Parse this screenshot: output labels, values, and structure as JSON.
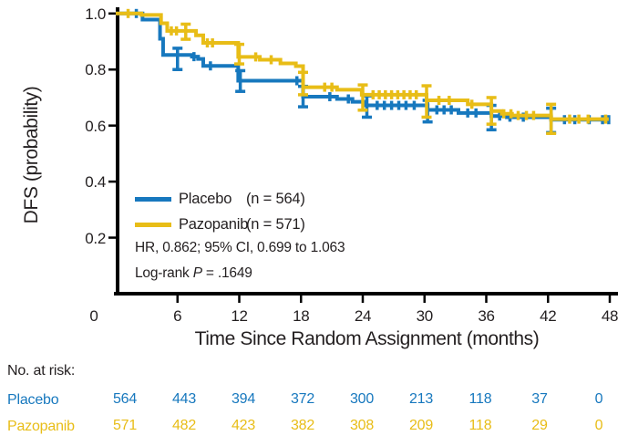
{
  "colors": {
    "placebo": "#1778BE",
    "pazopanib": "#E8BD17",
    "axis": "#000000",
    "text": "#231F20"
  },
  "y_axis": {
    "label": "DFS (probability)",
    "ticks": [
      "1.0",
      "0.8",
      "0.6",
      "0.4",
      "0.2"
    ],
    "tick_values": [
      1.0,
      0.8,
      0.6,
      0.4,
      0.2
    ]
  },
  "x_axis": {
    "label": "Time Since Random Assignment (months)",
    "ticks": [
      "0",
      "6",
      "12",
      "18",
      "24",
      "30",
      "36",
      "42",
      "48"
    ],
    "tick_values": [
      0,
      6,
      12,
      18,
      24,
      30,
      36,
      42,
      48
    ]
  },
  "legend": {
    "placebo_label": "Placebo",
    "placebo_n": "(n = 564)",
    "pazopanib_label": "Pazopanib",
    "pazopanib_n": "(n = 571)"
  },
  "stats": {
    "hr_line": "HR, 0.862; 95% CI, 0.699 to 1.063",
    "logrank_prefix": "Log-rank ",
    "logrank_p_symbol": "P",
    "logrank_value": " = .1649"
  },
  "risk_table": {
    "header": "No. at risk:",
    "rows": [
      {
        "label": "Placebo",
        "color": "#1778BE",
        "values": [
          "564",
          "443",
          "394",
          "372",
          "300",
          "213",
          "118",
          "37",
          "0"
        ]
      },
      {
        "label": "Pazopanib",
        "color": "#E8BD17",
        "values": [
          "571",
          "482",
          "423",
          "382",
          "308",
          "209",
          "118",
          "29",
          "0"
        ]
      }
    ]
  },
  "chart_data": {
    "type": "line",
    "subtype": "kaplan-meier",
    "title": "",
    "xlabel": "Time Since Random Assignment (months)",
    "ylabel": "DFS (probability)",
    "xlim": [
      0,
      48
    ],
    "ylim": [
      0,
      1.0
    ],
    "x_ticks": [
      0,
      6,
      12,
      18,
      24,
      30,
      36,
      42,
      48
    ],
    "y_ticks": [
      0.2,
      0.4,
      0.6,
      0.8,
      1.0
    ],
    "grid": false,
    "legend_position": "inside-lower-left",
    "annotations": [
      "HR, 0.862; 95% CI, 0.699 to 1.063",
      "Log-rank P = .1649"
    ],
    "series": [
      {
        "name": "Placebo",
        "n": 564,
        "color": "#1778BE",
        "steps": [
          [
            0,
            1.0
          ],
          [
            2.6,
            0.978
          ],
          [
            4.3,
            0.91
          ],
          [
            4.6,
            0.852
          ],
          [
            7.4,
            0.846
          ],
          [
            8.0,
            0.838
          ],
          [
            8.5,
            0.813
          ],
          [
            11.9,
            0.76
          ],
          [
            18.2,
            0.703
          ],
          [
            21.5,
            0.695
          ],
          [
            23.0,
            0.685
          ],
          [
            24.2,
            0.672
          ],
          [
            30.3,
            0.656
          ],
          [
            33.3,
            0.645
          ],
          [
            36.5,
            0.634
          ],
          [
            38.0,
            0.63
          ],
          [
            42.3,
            0.621
          ],
          [
            47.9,
            0.621
          ]
        ],
        "error_bars": [
          [
            6.0,
            0.8,
            0.876
          ],
          [
            12.1,
            0.722,
            0.796
          ],
          [
            18.2,
            0.667,
            0.74
          ],
          [
            24.4,
            0.63,
            0.706
          ],
          [
            30.3,
            0.613,
            0.69
          ],
          [
            36.5,
            0.585,
            0.672
          ],
          [
            42.3,
            0.575,
            0.662
          ]
        ],
        "censor_months": [
          2.0,
          7.6,
          9.2,
          17.6,
          20.8,
          22.6,
          25.4,
          26.1,
          26.8,
          27.5,
          28.2,
          29.0,
          31.2,
          31.9,
          32.6,
          34.2,
          35.0,
          37.3,
          38.3,
          39.6,
          43.6,
          44.6,
          46.0,
          47.3,
          47.9
        ],
        "at_risk": [
          564,
          443,
          394,
          372,
          300,
          213,
          118,
          37,
          0
        ]
      },
      {
        "name": "Pazopanib",
        "n": 571,
        "color": "#E8BD17",
        "steps": [
          [
            0,
            1.0
          ],
          [
            2.5,
            0.995
          ],
          [
            4.4,
            0.965
          ],
          [
            5.0,
            0.938
          ],
          [
            7.8,
            0.922
          ],
          [
            8.5,
            0.895
          ],
          [
            11.9,
            0.845
          ],
          [
            14.0,
            0.835
          ],
          [
            16.0,
            0.822
          ],
          [
            17.5,
            0.812
          ],
          [
            18.2,
            0.737
          ],
          [
            21.5,
            0.728
          ],
          [
            23.9,
            0.71
          ],
          [
            30.2,
            0.69
          ],
          [
            34.2,
            0.676
          ],
          [
            36.5,
            0.652
          ],
          [
            37.5,
            0.642
          ],
          [
            38.5,
            0.636
          ],
          [
            42.3,
            0.623
          ],
          [
            47.9,
            0.623
          ]
        ],
        "error_bars": [
          [
            6.8,
            0.908,
            0.962
          ],
          [
            12.0,
            0.82,
            0.89
          ],
          [
            18.2,
            0.71,
            0.79
          ],
          [
            24.0,
            0.655,
            0.745
          ],
          [
            30.2,
            0.63,
            0.742
          ],
          [
            36.5,
            0.605,
            0.7
          ],
          [
            42.3,
            0.572,
            0.676
          ]
        ],
        "censor_months": [
          1.2,
          5.4,
          5.9,
          8.9,
          9.4,
          13.6,
          15.1,
          20.3,
          21.0,
          25.0,
          25.6,
          26.2,
          26.8,
          27.4,
          28.0,
          28.6,
          29.2,
          31.4,
          32.4,
          34.6,
          37.7,
          38.4,
          39.1,
          39.9,
          40.6,
          44.1,
          45.0,
          45.9,
          47.6
        ],
        "at_risk": [
          571,
          482,
          423,
          382,
          308,
          209,
          118,
          29,
          0
        ]
      }
    ],
    "stats": {
      "hr": 0.862,
      "ci_low": 0.699,
      "ci_high": 1.063,
      "log_rank_p": 0.1649
    }
  }
}
